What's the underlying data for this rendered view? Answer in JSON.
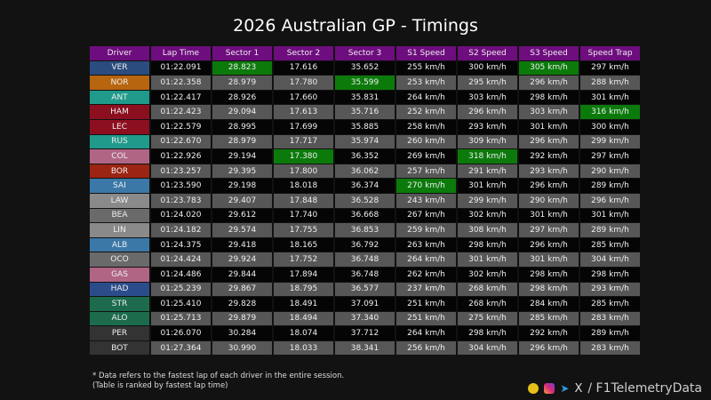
{
  "title": "2026 Australian GP - Timings",
  "columns": [
    "Driver",
    "Lap Time",
    "Sector 1",
    "Sector 2",
    "Sector 3",
    "S1 Speed",
    "S2 Speed",
    "S3 Speed",
    "Speed Trap"
  ],
  "best_color": "#0b7a0b",
  "rows": [
    {
      "d": "VER",
      "c": "#2b4c7e",
      "v": [
        "01:22.091",
        "28.823",
        "17.616",
        "35.652",
        "255 km/h",
        "300 km/h",
        "305 km/h",
        "297 km/h"
      ],
      "best": [
        1,
        6
      ]
    },
    {
      "d": "NOR",
      "c": "#b8650f",
      "v": [
        "01:22.358",
        "28.979",
        "17.780",
        "35.599",
        "253 km/h",
        "295 km/h",
        "296 km/h",
        "288 km/h"
      ],
      "best": [
        3
      ]
    },
    {
      "d": "ANT",
      "c": "#1f9a8b",
      "v": [
        "01:22.417",
        "28.926",
        "17.660",
        "35.831",
        "264 km/h",
        "303 km/h",
        "298 km/h",
        "301 km/h"
      ],
      "best": []
    },
    {
      "d": "HAM",
      "c": "#8c0f20",
      "v": [
        "01:22.423",
        "29.094",
        "17.613",
        "35.716",
        "252 km/h",
        "296 km/h",
        "303 km/h",
        "316 km/h"
      ],
      "best": [
        7
      ]
    },
    {
      "d": "LEC",
      "c": "#8c0f20",
      "v": [
        "01:22.579",
        "28.995",
        "17.699",
        "35.885",
        "258 km/h",
        "293 km/h",
        "301 km/h",
        "300 km/h"
      ],
      "best": []
    },
    {
      "d": "RUS",
      "c": "#1f9a8b",
      "v": [
        "01:22.670",
        "28.979",
        "17.717",
        "35.974",
        "260 km/h",
        "309 km/h",
        "296 km/h",
        "299 km/h"
      ],
      "best": []
    },
    {
      "d": "COL",
      "c": "#b06585",
      "v": [
        "01:22.926",
        "29.194",
        "17.380",
        "36.352",
        "269 km/h",
        "318 km/h",
        "292 km/h",
        "297 km/h"
      ],
      "best": [
        2,
        5
      ]
    },
    {
      "d": "BOR",
      "c": "#9c2412",
      "v": [
        "01:23.257",
        "29.395",
        "17.800",
        "36.062",
        "257 km/h",
        "291 km/h",
        "293 km/h",
        "290 km/h"
      ],
      "best": []
    },
    {
      "d": "SAI",
      "c": "#3b78a8",
      "v": [
        "01:23.590",
        "29.198",
        "18.018",
        "36.374",
        "270 km/h",
        "301 km/h",
        "296 km/h",
        "289 km/h"
      ],
      "best": [
        4
      ]
    },
    {
      "d": "LAW",
      "c": "#8a8a8a",
      "v": [
        "01:23.783",
        "29.407",
        "17.848",
        "36.528",
        "243 km/h",
        "299 km/h",
        "290 km/h",
        "296 km/h"
      ],
      "best": []
    },
    {
      "d": "BEA",
      "c": "#6a6a6a",
      "v": [
        "01:24.020",
        "29.612",
        "17.740",
        "36.668",
        "267 km/h",
        "302 km/h",
        "301 km/h",
        "301 km/h"
      ],
      "best": []
    },
    {
      "d": "LIN",
      "c": "#8a8a8a",
      "v": [
        "01:24.182",
        "29.574",
        "17.755",
        "36.853",
        "259 km/h",
        "308 km/h",
        "297 km/h",
        "289 km/h"
      ],
      "best": []
    },
    {
      "d": "ALB",
      "c": "#3b78a8",
      "v": [
        "01:24.375",
        "29.418",
        "18.165",
        "36.792",
        "263 km/h",
        "298 km/h",
        "296 km/h",
        "285 km/h"
      ],
      "best": []
    },
    {
      "d": "OCO",
      "c": "#6a6a6a",
      "v": [
        "01:24.424",
        "29.924",
        "17.752",
        "36.748",
        "264 km/h",
        "301 km/h",
        "301 km/h",
        "304 km/h"
      ],
      "best": []
    },
    {
      "d": "GAS",
      "c": "#b06585",
      "v": [
        "01:24.486",
        "29.844",
        "17.894",
        "36.748",
        "262 km/h",
        "302 km/h",
        "298 km/h",
        "298 km/h"
      ],
      "best": []
    },
    {
      "d": "HAD",
      "c": "#2b4c8a",
      "v": [
        "01:25.239",
        "29.867",
        "18.795",
        "36.577",
        "237 km/h",
        "268 km/h",
        "298 km/h",
        "293 km/h"
      ],
      "best": []
    },
    {
      "d": "STR",
      "c": "#1b6b4c",
      "v": [
        "01:25.410",
        "29.828",
        "18.491",
        "37.091",
        "251 km/h",
        "268 km/h",
        "284 km/h",
        "285 km/h"
      ],
      "best": []
    },
    {
      "d": "ALO",
      "c": "#1b6b4c",
      "v": [
        "01:25.713",
        "29.879",
        "18.494",
        "37.340",
        "251 km/h",
        "275 km/h",
        "285 km/h",
        "283 km/h"
      ],
      "best": []
    },
    {
      "d": "PER",
      "c": "#333333",
      "v": [
        "01:26.070",
        "30.284",
        "18.074",
        "37.712",
        "264 km/h",
        "298 km/h",
        "292 km/h",
        "289 km/h"
      ],
      "best": []
    },
    {
      "d": "BOT",
      "c": "#333333",
      "v": [
        "01:27.364",
        "30.990",
        "18.033",
        "38.341",
        "256 km/h",
        "304 km/h",
        "296 km/h",
        "283 km/h"
      ],
      "best": []
    }
  ],
  "footnote": {
    "line1": "* Data refers to the fastest lap of each driver in the entire session.",
    "line2": "(Table is ranked by fastest lap time)"
  },
  "social": {
    "handle": "/ F1TelemetryData",
    "x_label": "X"
  }
}
